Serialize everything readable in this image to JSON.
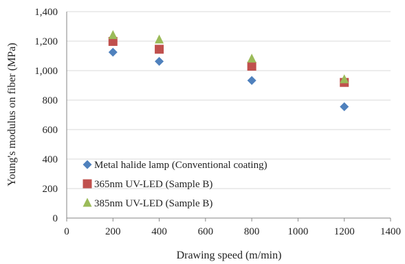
{
  "chart_data": {
    "type": "scatter",
    "xlabel": "Drawing speed (m/min)",
    "ylabel": "Young's modulus on fiber (MPa)",
    "xlim": [
      0,
      1400
    ],
    "ylim": [
      0,
      1400
    ],
    "x_ticks": [
      "0",
      "200",
      "400",
      "600",
      "800",
      "1000",
      "1200",
      "1400"
    ],
    "y_ticks": [
      "0",
      "200",
      "400",
      "600",
      "800",
      "1,000",
      "1,200",
      "1,400"
    ],
    "grid": "horizontal",
    "legend_position": "bottom-left",
    "series": [
      {
        "name": "Metal halide lamp (Conventional coating)",
        "marker": "diamond",
        "color": "#4f81bd",
        "points": [
          [
            200,
            1125
          ],
          [
            400,
            1063
          ],
          [
            800,
            933
          ],
          [
            1200,
            755
          ]
        ]
      },
      {
        "name": "365nm UV-LED (Sample B)",
        "marker": "square",
        "color": "#c0504d",
        "points": [
          [
            200,
            1198
          ],
          [
            400,
            1145
          ],
          [
            800,
            1030
          ],
          [
            1200,
            920
          ]
        ]
      },
      {
        "name": "385nm UV-LED (Sample B)",
        "marker": "triangle",
        "color": "#9bbb59",
        "points": [
          [
            200,
            1240
          ],
          [
            400,
            1210
          ],
          [
            800,
            1080
          ],
          [
            1200,
            940
          ]
        ]
      }
    ]
  }
}
